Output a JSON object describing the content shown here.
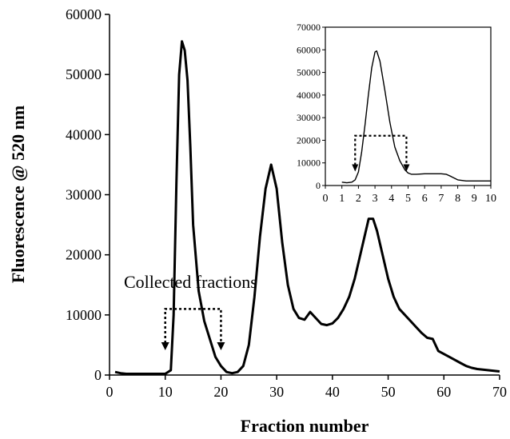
{
  "chart_data": [
    {
      "type": "line",
      "title": "",
      "xlabel": "Fraction number",
      "ylabel": "Fluorescence @ 520 nm",
      "xlim": [
        0,
        70
      ],
      "ylim": [
        0,
        60000
      ],
      "x_ticks": [
        0,
        10,
        20,
        30,
        40,
        50,
        60,
        70
      ],
      "y_ticks": [
        0,
        10000,
        20000,
        30000,
        40000,
        50000,
        60000
      ],
      "grid": false,
      "legend": "none",
      "series": [
        {
          "x": [
            1,
            2,
            3,
            5,
            8,
            10,
            11,
            11.5,
            12,
            12.5,
            13,
            13.5,
            14,
            14.5,
            15,
            16,
            17,
            18,
            19,
            20,
            21,
            22,
            23,
            24,
            25,
            26,
            27,
            28,
            29,
            30,
            31,
            32,
            33,
            34,
            35,
            36,
            37,
            38,
            39,
            40,
            41,
            42,
            43,
            44,
            45,
            46,
            46.5,
            47,
            47.3,
            48,
            49,
            50,
            51,
            52,
            53,
            54,
            55,
            56,
            57,
            58,
            59,
            60,
            61,
            62,
            63,
            64,
            65,
            66,
            67,
            68,
            69,
            70
          ],
          "values": [
            500,
            300,
            200,
            200,
            200,
            200,
            800,
            10000,
            32000,
            50000,
            55500,
            54000,
            49000,
            38000,
            25000,
            14000,
            9000,
            6000,
            3000,
            1500,
            500,
            300,
            500,
            1500,
            5000,
            13000,
            23000,
            31000,
            35000,
            31000,
            22000,
            15000,
            11000,
            9500,
            9200,
            10500,
            9500,
            8500,
            8300,
            8600,
            9500,
            11000,
            13000,
            16000,
            20000,
            24000,
            26000,
            26000,
            26000,
            24000,
            20000,
            16000,
            13000,
            11000,
            10000,
            9000,
            8000,
            7000,
            6200,
            6000,
            4000,
            3500,
            3000,
            2500,
            2000,
            1500,
            1200,
            1000,
            900,
            800,
            700,
            600
          ],
          "color": "#000000"
        }
      ],
      "annotations": [
        {
          "text": "Collected fractions",
          "bracket_from": 10,
          "bracket_to": 20,
          "bracket_y": 11000
        }
      ]
    },
    {
      "type": "line",
      "title": "",
      "xlabel": "",
      "ylabel": "",
      "xlim": [
        0,
        10
      ],
      "ylim": [
        0,
        70000
      ],
      "x_ticks": [
        0,
        1,
        2,
        3,
        4,
        5,
        6,
        7,
        8,
        9,
        10
      ],
      "y_ticks": [
        0,
        10000,
        20000,
        30000,
        40000,
        50000,
        60000,
        70000
      ],
      "grid": false,
      "legend": "none",
      "series": [
        {
          "x": [
            1,
            1.3,
            1.6,
            1.8,
            2.0,
            2.2,
            2.4,
            2.6,
            2.8,
            3.0,
            3.1,
            3.3,
            3.6,
            3.9,
            4.2,
            4.5,
            4.8,
            5.0,
            5.2,
            5.5,
            6.0,
            6.5,
            7.0,
            7.3,
            7.6,
            8.0,
            8.5,
            9.0,
            9.5,
            10
          ],
          "values": [
            1500,
            1200,
            1500,
            2500,
            6000,
            15000,
            27000,
            40000,
            52000,
            59000,
            59500,
            55000,
            42000,
            28000,
            17000,
            11000,
            7000,
            5500,
            5000,
            5000,
            5200,
            5200,
            5200,
            5000,
            4000,
            2500,
            2000,
            2000,
            2000,
            2000
          ],
          "color": "#000000"
        }
      ],
      "annotations": [
        {
          "text": "",
          "bracket_from": 1.8,
          "bracket_to": 4.9,
          "bracket_y": 22000
        }
      ]
    }
  ]
}
